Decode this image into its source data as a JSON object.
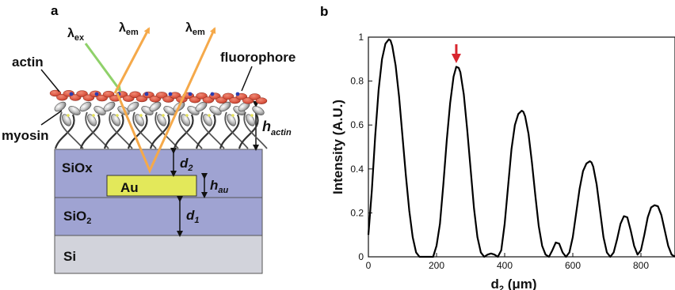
{
  "panel_a": {
    "letter": "a",
    "labels": {
      "lambda_ex": "λ",
      "lambda_ex_sub": "ex",
      "lambda_em": "λ",
      "lambda_em_sub": "em",
      "actin": "actin",
      "fluorophore": "fluorophore",
      "myosin": "myosin",
      "h_actin": "h",
      "h_actin_sub": "actin",
      "sioX": "SiOx",
      "d2": "d",
      "d2_sub": "2",
      "au": "Au",
      "h_au": "h",
      "h_au_sub": "au",
      "sio2": "SiO",
      "sio2_sub": "2",
      "d1": "d",
      "d1_sub": "1",
      "si": "Si"
    },
    "colors": {
      "sioX_layer": "#9fa3d2",
      "sio2_layer": "#9fa3d2",
      "si_layer": "#d2d3db",
      "au_layer": "#e3e85a",
      "actin": "#d9533f",
      "excitation_ray": "#8fd16a",
      "emission_ray": "#f5a94a"
    }
  },
  "panel_b": {
    "letter": "b",
    "chart_data": {
      "type": "line",
      "xlabel": "d",
      "xlabel_sub": "2",
      "xlabel_unit": " (μm)",
      "ylabel": "Intensity (A.U.)",
      "xlim": [
        0,
        900
      ],
      "ylim": [
        0,
        1
      ],
      "xticks": [
        0,
        200,
        400,
        600,
        800
      ],
      "yticks": [
        0,
        0.2,
        0.4,
        0.6,
        0.8,
        1
      ],
      "ytick_labels": [
        "0",
        "0.2",
        "0.4",
        "0.6",
        "0.8",
        "1"
      ],
      "grid": false,
      "series": [
        {
          "color": "#000000",
          "x": [
            0,
            10,
            20,
            30,
            40,
            50,
            60,
            65,
            70,
            80,
            90,
            100,
            110,
            120,
            130,
            140,
            150,
            160,
            170,
            180,
            190,
            200,
            210,
            220,
            230,
            240,
            250,
            258,
            265,
            270,
            280,
            290,
            300,
            310,
            320,
            330,
            340,
            350,
            360,
            370,
            380,
            390,
            400,
            410,
            420,
            430,
            440,
            450,
            455,
            460,
            470,
            480,
            490,
            500,
            510,
            520,
            530,
            540,
            550,
            560,
            570,
            580,
            590,
            600,
            610,
            620,
            630,
            640,
            650,
            655,
            660,
            670,
            680,
            690,
            700,
            710,
            720,
            730,
            740,
            750,
            760,
            770,
            780,
            790,
            800,
            810,
            820,
            830,
            840,
            850,
            860,
            870,
            880,
            890,
            900
          ],
          "y": [
            0.1,
            0.3,
            0.55,
            0.76,
            0.9,
            0.97,
            0.99,
            0.985,
            0.96,
            0.87,
            0.73,
            0.55,
            0.37,
            0.21,
            0.09,
            0.02,
            0.0,
            0.0,
            0.0,
            0.0,
            0.0,
            0.05,
            0.15,
            0.33,
            0.53,
            0.7,
            0.82,
            0.865,
            0.86,
            0.84,
            0.74,
            0.58,
            0.4,
            0.22,
            0.09,
            0.02,
            0.0,
            0.01,
            0.015,
            0.01,
            0.0,
            0.03,
            0.15,
            0.32,
            0.49,
            0.6,
            0.65,
            0.665,
            0.66,
            0.64,
            0.56,
            0.43,
            0.28,
            0.14,
            0.05,
            0.01,
            0.0,
            0.03,
            0.065,
            0.06,
            0.02,
            0.0,
            0.02,
            0.09,
            0.2,
            0.31,
            0.39,
            0.425,
            0.435,
            0.43,
            0.41,
            0.33,
            0.21,
            0.09,
            0.02,
            0.0,
            0.02,
            0.08,
            0.15,
            0.185,
            0.18,
            0.12,
            0.05,
            0.01,
            0.03,
            0.1,
            0.18,
            0.225,
            0.235,
            0.23,
            0.19,
            0.12,
            0.05,
            0.01,
            0.0
          ]
        }
      ],
      "annotation": {
        "type": "arrow",
        "x": 258,
        "color": "#d8262f"
      }
    }
  }
}
